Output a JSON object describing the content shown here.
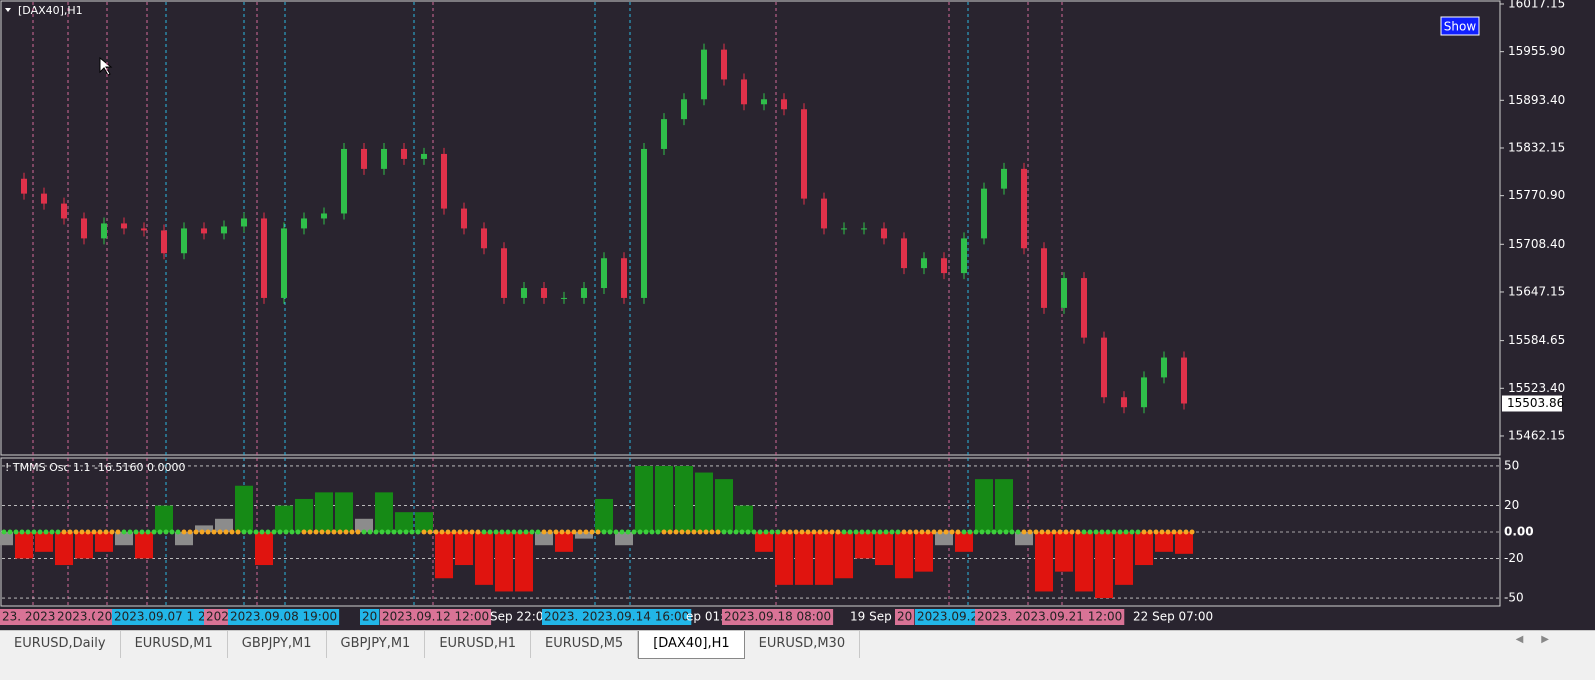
{
  "window": {
    "title": "[DAX40],H1",
    "button": "Show"
  },
  "chart_data": [
    {
      "type": "candlestick",
      "values": [
        15792.6,
        15773.5,
        15760.7,
        15741.6,
        15716.0,
        15735.2,
        15728.8,
        15726.2,
        15696.9,
        15728.8,
        15722.4,
        15731.3,
        15741.6,
        15639.5,
        15728.8,
        15741.6,
        15748.0,
        15830.9,
        15805.3,
        15830.9,
        15818.1,
        15824.5,
        15754.3,
        15728.8,
        15703.3,
        15639.5,
        15652.2,
        15639.5,
        15639.5,
        15652.2,
        15690.5,
        15639.5,
        15830.9,
        15869.2,
        15894.7,
        15958.5,
        15920.2,
        15888.3,
        15894.7,
        15881.9,
        15767.1,
        15728.8,
        15728.8,
        15728.8,
        15716.0,
        15677.8,
        15690.5,
        15671.4,
        15716.0,
        15779.9,
        15805.3,
        15703.3,
        15626.7,
        15665.0,
        15588.5,
        15511.9,
        15499.1,
        15537.4,
        15562.9,
        15503.86
      ],
      "ylim": [
        15437.7,
        16019.7
      ],
      "yticks": [
        16017.15,
        {
          "value": 15955.9,
          "label": "15955.90"
        },
        {
          "value": 15893.4,
          "label": "15893.40"
        },
        15832.15,
        {
          "value": 15770.9,
          "label": "15770.90"
        },
        {
          "value": 15708.4,
          "label": "15708.40"
        },
        15647.15,
        15584.65,
        {
          "value": 15523.4,
          "label": "15523.40"
        },
        15462.15
      ]
    },
    {
      "type": "bar",
      "title": "! TMMS Osc 1.1 -16.5160 0.0000",
      "values": [
        -10,
        -20,
        -15,
        -25,
        -20,
        -15,
        -10,
        -20,
        20,
        -10,
        5,
        10,
        35,
        -25,
        20,
        25,
        30,
        30,
        10,
        30,
        15,
        15,
        -35,
        -25,
        -40,
        -45,
        -45,
        -10,
        -15,
        -5,
        25,
        -10,
        50,
        50,
        50,
        45,
        40,
        20,
        -15,
        -40,
        -40,
        -40,
        -35,
        -20,
        -25,
        -35,
        -30,
        -10,
        -15,
        40,
        40,
        -10,
        -45,
        -30,
        -45,
        -50,
        -40,
        -25,
        -15,
        -16.516
      ],
      "ylim": [
        -56,
        56
      ],
      "yticks": [
        50,
        20,
        {
          "value": 0,
          "label": "0.00"
        },
        -20,
        -50
      ]
    }
  ],
  "time_labels": [
    "23. 2023.0",
    "2023.0",
    "20",
    "2023.09.07 1 2",
    "202",
    "2023.09.08 19:00",
    "20",
    "2023.09.12 12:00",
    "Sep 22:0",
    "2023. 2023.09.14 16:00",
    "ep 01:",
    "2023.09.18 08:00",
    "19 Sep (",
    "20",
    "2023.09.2",
    "2023. 2023.09.21 12:00",
    "22 Sep 07:00"
  ],
  "tabs": [
    "EURUSD,Daily",
    "EURUSD,M1",
    "GBPJPY,M1",
    "GBPJPY,M1",
    "EURUSD,H1",
    "EURUSD,M5",
    "[DAX40],H1",
    "EURUSD,M30"
  ]
}
